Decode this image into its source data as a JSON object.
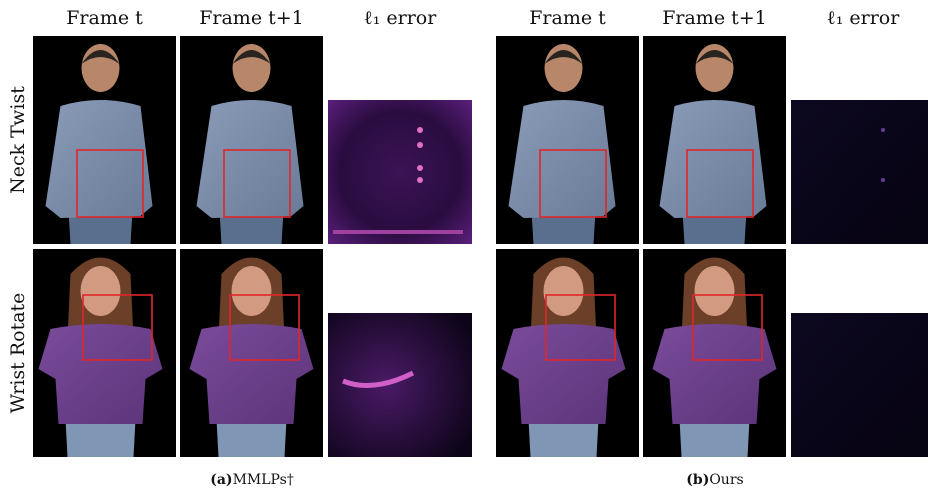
{
  "headers": [
    "Frame t",
    "Frame t+1",
    "ℓ₁ error"
  ],
  "rows": [
    "Neck Twist",
    "Wrist Rotate"
  ],
  "panels": [
    {
      "label": "(a)",
      "method": "MMLPs†"
    },
    {
      "label": "(b)",
      "method": "Ours"
    }
  ]
}
